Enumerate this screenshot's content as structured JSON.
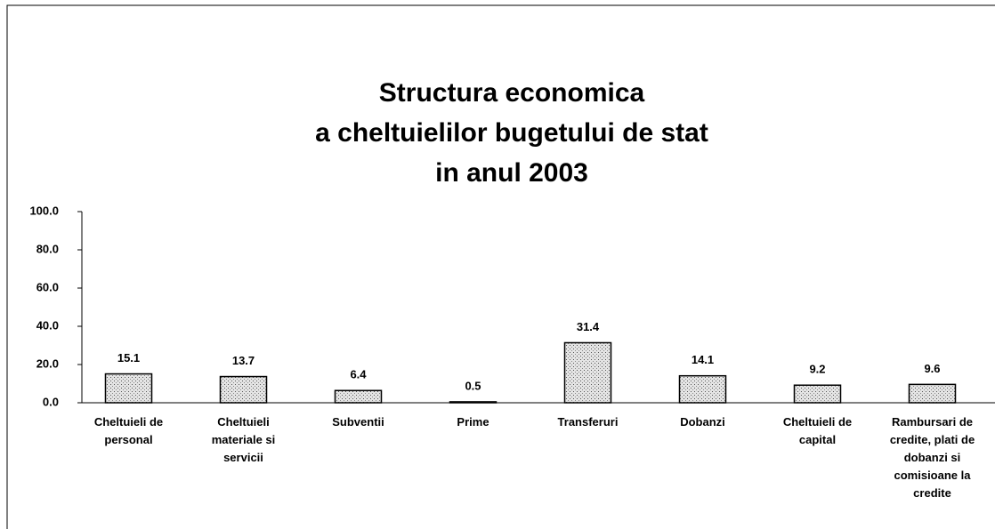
{
  "chart_data": {
    "type": "bar",
    "title": [
      "Structura economica",
      "a cheltuielilor bugetului de stat",
      "in anul 2003"
    ],
    "categories": [
      "Cheltuieli de personal",
      "Cheltuieli materiale si servicii",
      "Subventii",
      "Prime",
      "Transferuri",
      "Dobanzi",
      "Cheltuieli de capital",
      "Rambursari de credite, plati de dobanzi si comisioane la credite"
    ],
    "values": [
      15.1,
      13.7,
      6.4,
      0.5,
      31.4,
      14.1,
      9.2,
      9.6
    ],
    "color": "#c8c8c8",
    "ylim": [
      0,
      100
    ],
    "yticks": [
      {
        "value": 0,
        "label": "0.0"
      },
      {
        "value": 20,
        "label": "20.0"
      },
      {
        "value": 40,
        "label": "40.0"
      },
      {
        "value": 60,
        "label": "60.0"
      },
      {
        "value": 80,
        "label": "80.0"
      },
      {
        "value": 100,
        "label": "100.0"
      }
    ]
  }
}
